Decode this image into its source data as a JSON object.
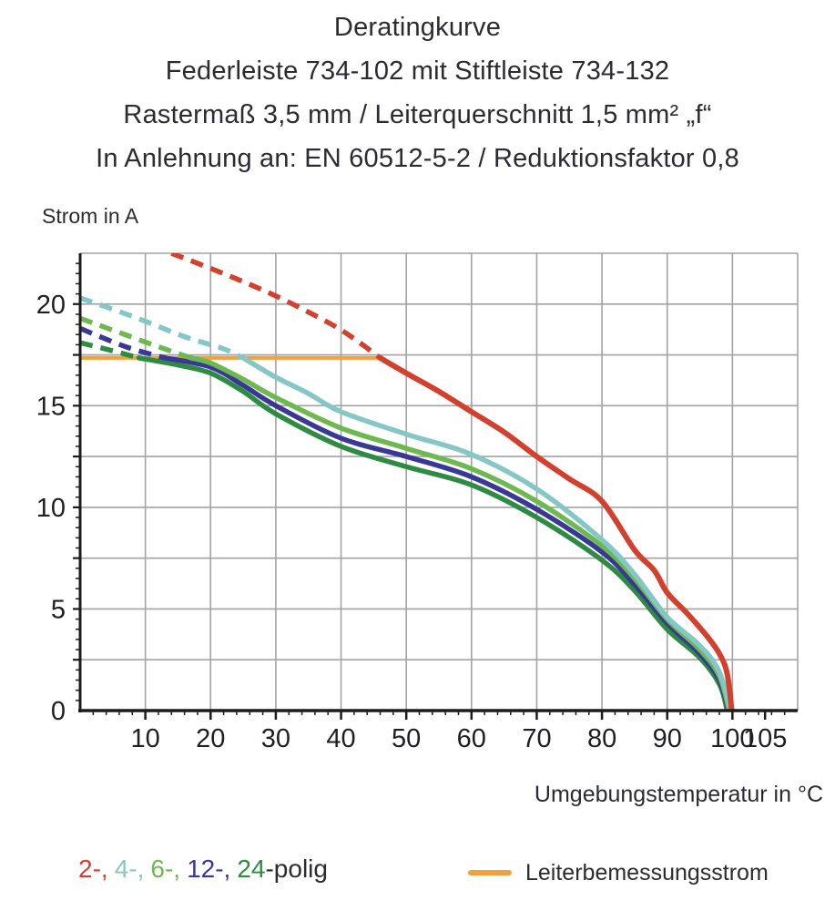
{
  "title": {
    "line1": "Deratingkurve",
    "line2": "Federleiste 734-102 mit Stiftleiste 734-132",
    "line3": "Rastermaß 3,5 mm / Leiterquerschnitt 1,5 mm² „f“",
    "line4": "In Anlehnung an: EN 60512-5-2 / Reduktionsfaktor 0,8"
  },
  "axes": {
    "y_label": "Strom in A",
    "x_label": "Umgebungstemperatur in °C"
  },
  "legend": {
    "poles": [
      {
        "label": "2-,",
        "color": "#d4402e"
      },
      {
        "label": "4-,",
        "color": "#85c7c6"
      },
      {
        "label": "6-,",
        "color": "#6eb850"
      },
      {
        "label": "12-,",
        "color": "#3a3897"
      },
      {
        "label": "24",
        "color": "#2e8b42"
      }
    ],
    "suffix": "-polig",
    "rated": {
      "label": "Leiterbemessungsstrom",
      "color": "#f2a23a"
    }
  },
  "colors": {
    "grid": "#a3a3a3",
    "axis": "#1c1c1c",
    "text": "#1e1e24",
    "background": "#ffffff"
  },
  "chart_data": {
    "type": "line",
    "title": "Deratingkurve",
    "xlabel": "Umgebungstemperatur in °C",
    "ylabel": "Strom in A",
    "xlim": [
      0,
      110
    ],
    "ylim": [
      0,
      22.5
    ],
    "x_ticks": [
      10,
      20,
      30,
      40,
      50,
      60,
      70,
      80,
      90,
      100,
      105
    ],
    "y_ticks": [
      0,
      5,
      10,
      15,
      20
    ],
    "x_grid_step": 10,
    "y_grid_step": 2.5,
    "x_minor_tick_step": 2,
    "y_minor_tick_step": 0.5,
    "grid": true,
    "legend_position": "bottom",
    "rated_current_line": {
      "name": "Leiterbemessungsstrom",
      "value_a": 17.35,
      "x_range": [
        0,
        46.3
      ],
      "color": "#f2a23a"
    },
    "series": [
      {
        "name": "2-polig",
        "color": "#d4402e",
        "dashed_points": [
          [
            14,
            22.5
          ],
          [
            22,
            21.5
          ],
          [
            30,
            20.4
          ],
          [
            38,
            19.1
          ],
          [
            42,
            18.3
          ],
          [
            46,
            17.35
          ]
        ],
        "solid_points": [
          [
            46,
            17.35
          ],
          [
            50,
            16.6
          ],
          [
            55,
            15.7
          ],
          [
            60,
            14.7
          ],
          [
            65,
            13.7
          ],
          [
            70,
            12.5
          ],
          [
            75,
            11.4
          ],
          [
            80,
            10.3
          ],
          [
            85,
            7.9
          ],
          [
            88,
            6.9
          ],
          [
            90,
            5.8
          ],
          [
            93,
            4.8
          ],
          [
            96,
            3.7
          ],
          [
            98,
            2.8
          ],
          [
            99.2,
            1.8
          ],
          [
            99.9,
            0
          ]
        ]
      },
      {
        "name": "4-polig",
        "color": "#85c7c6",
        "dashed_points": [
          [
            0,
            20.3
          ],
          [
            8,
            19.4
          ],
          [
            16,
            18.4
          ],
          [
            22,
            17.8
          ],
          [
            25,
            17.35
          ]
        ],
        "solid_points": [
          [
            25,
            17.35
          ],
          [
            30,
            16.4
          ],
          [
            35,
            15.6
          ],
          [
            40,
            14.7
          ],
          [
            50,
            13.6
          ],
          [
            60,
            12.6
          ],
          [
            70,
            10.9
          ],
          [
            80,
            8.4
          ],
          [
            85,
            6.7
          ],
          [
            90,
            4.6
          ],
          [
            95,
            3.2
          ],
          [
            98,
            1.9
          ],
          [
            99.7,
            0
          ]
        ]
      },
      {
        "name": "6-polig",
        "color": "#6eb850",
        "dashed_points": [
          [
            0,
            19.3
          ],
          [
            6,
            18.6
          ],
          [
            12,
            17.9
          ],
          [
            17,
            17.35
          ]
        ],
        "solid_points": [
          [
            17,
            17.35
          ],
          [
            20,
            17.1
          ],
          [
            25,
            16.3
          ],
          [
            30,
            15.4
          ],
          [
            40,
            13.9
          ],
          [
            50,
            12.9
          ],
          [
            60,
            11.9
          ],
          [
            70,
            10.3
          ],
          [
            80,
            8.1
          ],
          [
            85,
            6.5
          ],
          [
            90,
            4.5
          ],
          [
            95,
            3.0
          ],
          [
            98,
            1.7
          ],
          [
            99.5,
            0
          ]
        ]
      },
      {
        "name": "12-polig",
        "color": "#3a3897",
        "dashed_points": [
          [
            0,
            18.8
          ],
          [
            7,
            17.9
          ],
          [
            13,
            17.35
          ]
        ],
        "solid_points": [
          [
            13,
            17.35
          ],
          [
            20,
            16.9
          ],
          [
            25,
            16.0
          ],
          [
            30,
            15.0
          ],
          [
            40,
            13.4
          ],
          [
            50,
            12.5
          ],
          [
            60,
            11.5
          ],
          [
            70,
            9.9
          ],
          [
            80,
            7.8
          ],
          [
            85,
            6.2
          ],
          [
            90,
            4.3
          ],
          [
            95,
            2.8
          ],
          [
            98,
            1.5
          ],
          [
            99.4,
            0
          ]
        ]
      },
      {
        "name": "24-polig",
        "color": "#2e8b42",
        "dashed_points": [
          [
            0,
            18.1
          ],
          [
            5,
            17.7
          ],
          [
            9,
            17.35
          ]
        ],
        "solid_points": [
          [
            9,
            17.35
          ],
          [
            15,
            17.0
          ],
          [
            20,
            16.6
          ],
          [
            25,
            15.7
          ],
          [
            30,
            14.6
          ],
          [
            40,
            13.0
          ],
          [
            50,
            12.0
          ],
          [
            60,
            11.1
          ],
          [
            70,
            9.5
          ],
          [
            80,
            7.4
          ],
          [
            85,
            5.9
          ],
          [
            90,
            4.0
          ],
          [
            95,
            2.6
          ],
          [
            98,
            1.3
          ],
          [
            99.2,
            0
          ]
        ]
      }
    ]
  }
}
